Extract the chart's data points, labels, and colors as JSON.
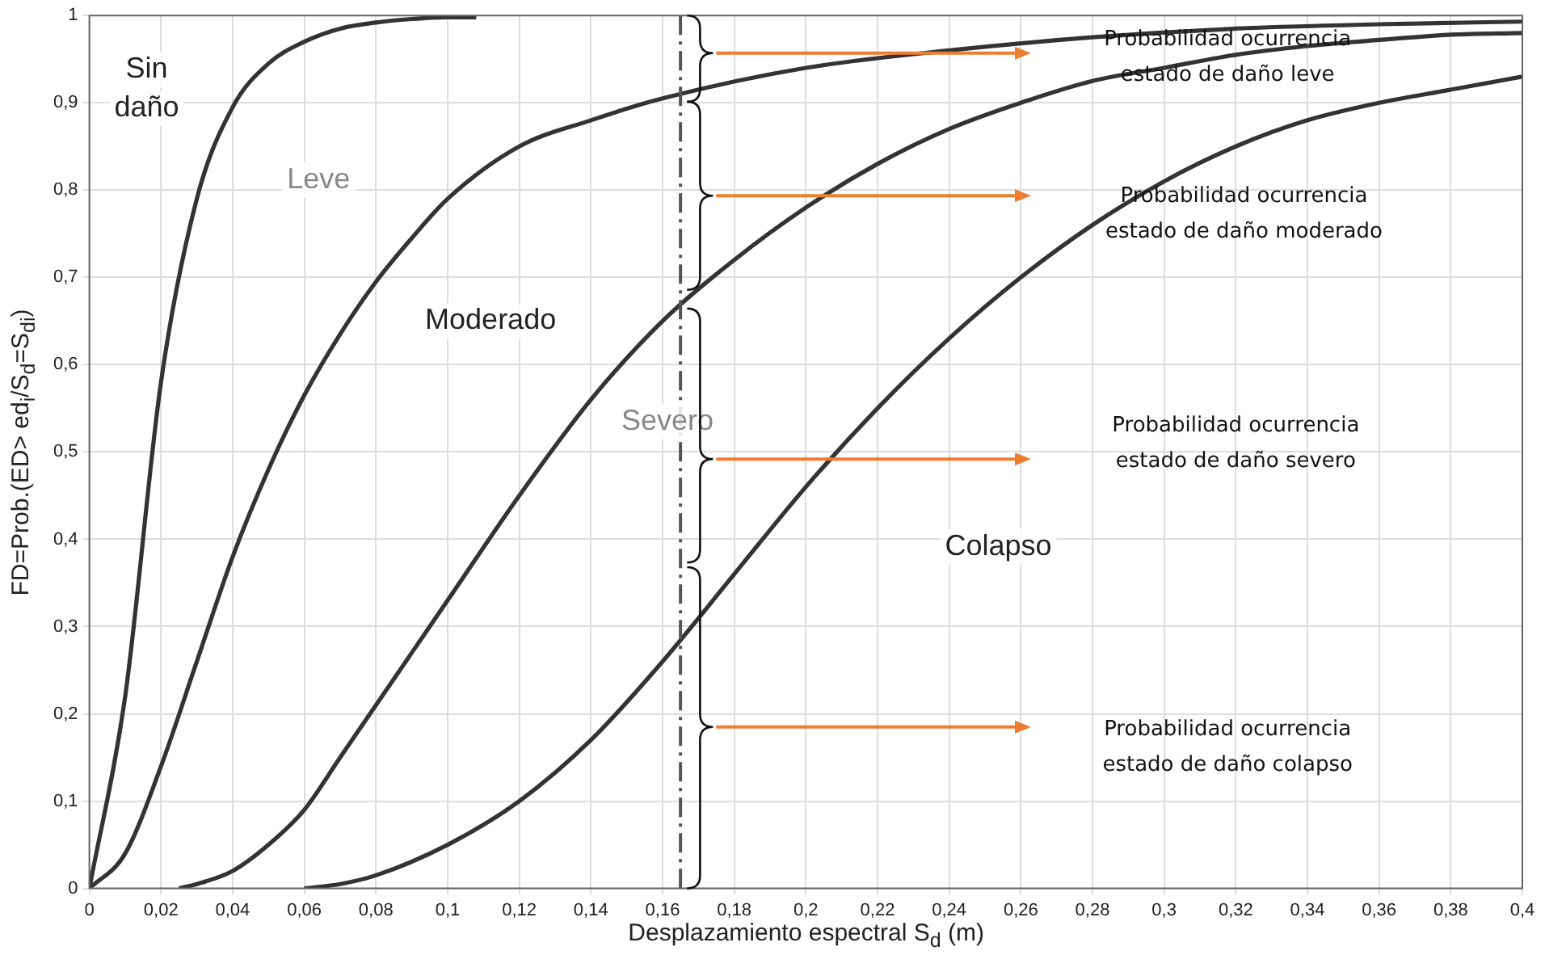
{
  "chart_data": {
    "type": "line",
    "xlabel": "Desplazamiento espectral S$_{d}$ (m)",
    "ylabel": "FD=Prob.(ED> ed$_{i}$/S$_{d}$=S$_{di}$)",
    "xlim": [
      0,
      0.4
    ],
    "xticks": [
      0,
      {
        "value": 0.02,
        "label": "0,02"
      },
      {
        "value": 0.04,
        "label": "0,04"
      },
      {
        "value": 0.06,
        "label": "0,06"
      },
      {
        "value": 0.08,
        "label": "0,08"
      },
      {
        "value": 0.1,
        "label": "0,1"
      },
      {
        "value": 0.12,
        "label": "0,12"
      },
      {
        "value": 0.14,
        "label": "0,14"
      },
      {
        "value": 0.16,
        "label": "0,16"
      },
      {
        "value": 0.18,
        "label": "0,18"
      },
      {
        "value": 0.2,
        "label": "0,2"
      },
      {
        "value": 0.22,
        "label": "0,22"
      },
      {
        "value": 0.24,
        "label": "0,24"
      },
      {
        "value": 0.26,
        "label": "0,26"
      },
      {
        "value": 0.28,
        "label": "0,28"
      },
      {
        "value": 0.3,
        "label": "0,3"
      },
      {
        "value": 0.32,
        "label": "0,32"
      },
      {
        "value": 0.34,
        "label": "0,34"
      },
      {
        "value": 0.36,
        "label": "0,36"
      },
      {
        "value": 0.38,
        "label": "0,38"
      },
      {
        "value": 0.4,
        "label": "0,4"
      }
    ],
    "ylim": [
      0,
      1
    ],
    "yticks": [
      0,
      {
        "value": 0.1,
        "label": "0,1"
      },
      {
        "value": 0.2,
        "label": "0,2"
      },
      {
        "value": 0.3,
        "label": "0,3"
      },
      {
        "value": 0.4,
        "label": "0,4"
      },
      {
        "value": 0.5,
        "label": "0,5"
      },
      {
        "value": 0.6,
        "label": "0,6"
      },
      {
        "value": 0.7,
        "label": "0,7"
      },
      {
        "value": 0.8,
        "label": "0,8"
      },
      {
        "value": 0.9,
        "label": "0,9"
      },
      1
    ],
    "grid": true,
    "legend": false,
    "marker": "none",
    "line_style": "solid",
    "series": [
      {
        "color": "#333333",
        "x": [
          0,
          0.01,
          0.02,
          0.03,
          0.04,
          0.05,
          0.06,
          0.07,
          0.08,
          0.09,
          0.1,
          0.108
        ],
        "values": [
          0,
          0.22,
          0.58,
          0.79,
          0.895,
          0.945,
          0.97,
          0.985,
          0.992,
          0.996,
          0.998,
          0.998
        ]
      },
      {
        "color": "#333333",
        "x": [
          0,
          0.01,
          0.02,
          0.03,
          0.04,
          0.05,
          0.06,
          0.07,
          0.08,
          0.09,
          0.1,
          0.12,
          0.14,
          0.16,
          0.2,
          0.24,
          0.28,
          0.32,
          0.36,
          0.4
        ],
        "values": [
          0,
          0.04,
          0.14,
          0.26,
          0.38,
          0.48,
          0.565,
          0.635,
          0.695,
          0.745,
          0.79,
          0.85,
          0.88,
          0.905,
          0.94,
          0.96,
          0.975,
          0.985,
          0.99,
          0.993
        ]
      },
      {
        "color": "#333333",
        "x": [
          0.025,
          0.03,
          0.04,
          0.05,
          0.06,
          0.07,
          0.08,
          0.09,
          0.1,
          0.12,
          0.14,
          0.16,
          0.18,
          0.2,
          0.22,
          0.24,
          0.26,
          0.28,
          0.3,
          0.32,
          0.34,
          0.36,
          0.38,
          0.4
        ],
        "values": [
          0,
          0.005,
          0.02,
          0.05,
          0.09,
          0.15,
          0.21,
          0.27,
          0.33,
          0.45,
          0.56,
          0.65,
          0.72,
          0.78,
          0.83,
          0.87,
          0.9,
          0.925,
          0.94,
          0.955,
          0.965,
          0.972,
          0.978,
          0.98
        ]
      },
      {
        "color": "#333333",
        "x": [
          0.06,
          0.07,
          0.08,
          0.1,
          0.12,
          0.14,
          0.16,
          0.18,
          0.2,
          0.22,
          0.24,
          0.26,
          0.28,
          0.3,
          0.32,
          0.34,
          0.36,
          0.38,
          0.4
        ],
        "values": [
          0,
          0.005,
          0.015,
          0.05,
          0.1,
          0.17,
          0.26,
          0.36,
          0.46,
          0.55,
          0.63,
          0.7,
          0.76,
          0.81,
          0.85,
          0.88,
          0.9,
          0.915,
          0.93
        ]
      }
    ],
    "ref_lines": [
      {
        "axis": "x",
        "value": 0.165,
        "color": "#555555",
        "line_style": "dashed"
      }
    ],
    "annotations": [
      "Sin\ndaño",
      "Leve",
      "Moderado",
      "Severo",
      "Colapso",
      "Probabilidad ocurrencia\nestado de daño leve",
      "Probabilidad ocurrencia\nestado de daño moderado",
      "Probabilidad ocurrencia\nestado de daño severo",
      "Probabilidad ocurrencia\nestado de daño colapso"
    ]
  }
}
